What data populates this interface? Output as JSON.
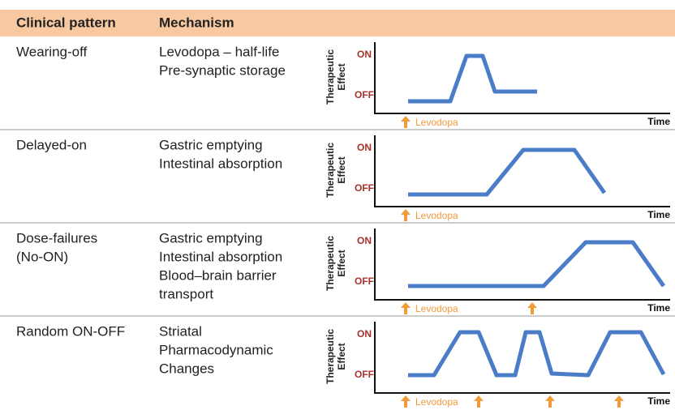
{
  "header": {
    "columns": [
      "Clinical pattern",
      "Mechanism"
    ]
  },
  "chart_labels": {
    "y_axis": [
      "Therapeutic",
      "Effect"
    ],
    "on": "ON",
    "off": "OFF",
    "drug": "Levodopa",
    "x_axis": "Time"
  },
  "rows": [
    {
      "pattern": [
        "Wearing-off"
      ],
      "mechanism": [
        "Levodopa – half-life",
        "Pre-synaptic storage"
      ]
    },
    {
      "pattern": [
        "Delayed-on"
      ],
      "mechanism": [
        "Gastric emptying",
        "Intestinal absorption"
      ]
    },
    {
      "pattern": [
        "Dose-failures",
        "(No-ON)"
      ],
      "mechanism": [
        "Gastric emptying",
        "Intestinal absorption",
        "Blood–brain barrier",
        "transport"
      ]
    },
    {
      "pattern": [
        "Random ON-OFF"
      ],
      "mechanism": [
        "Striatal",
        "Pharmacodynamic",
        "Changes"
      ]
    }
  ]
}
